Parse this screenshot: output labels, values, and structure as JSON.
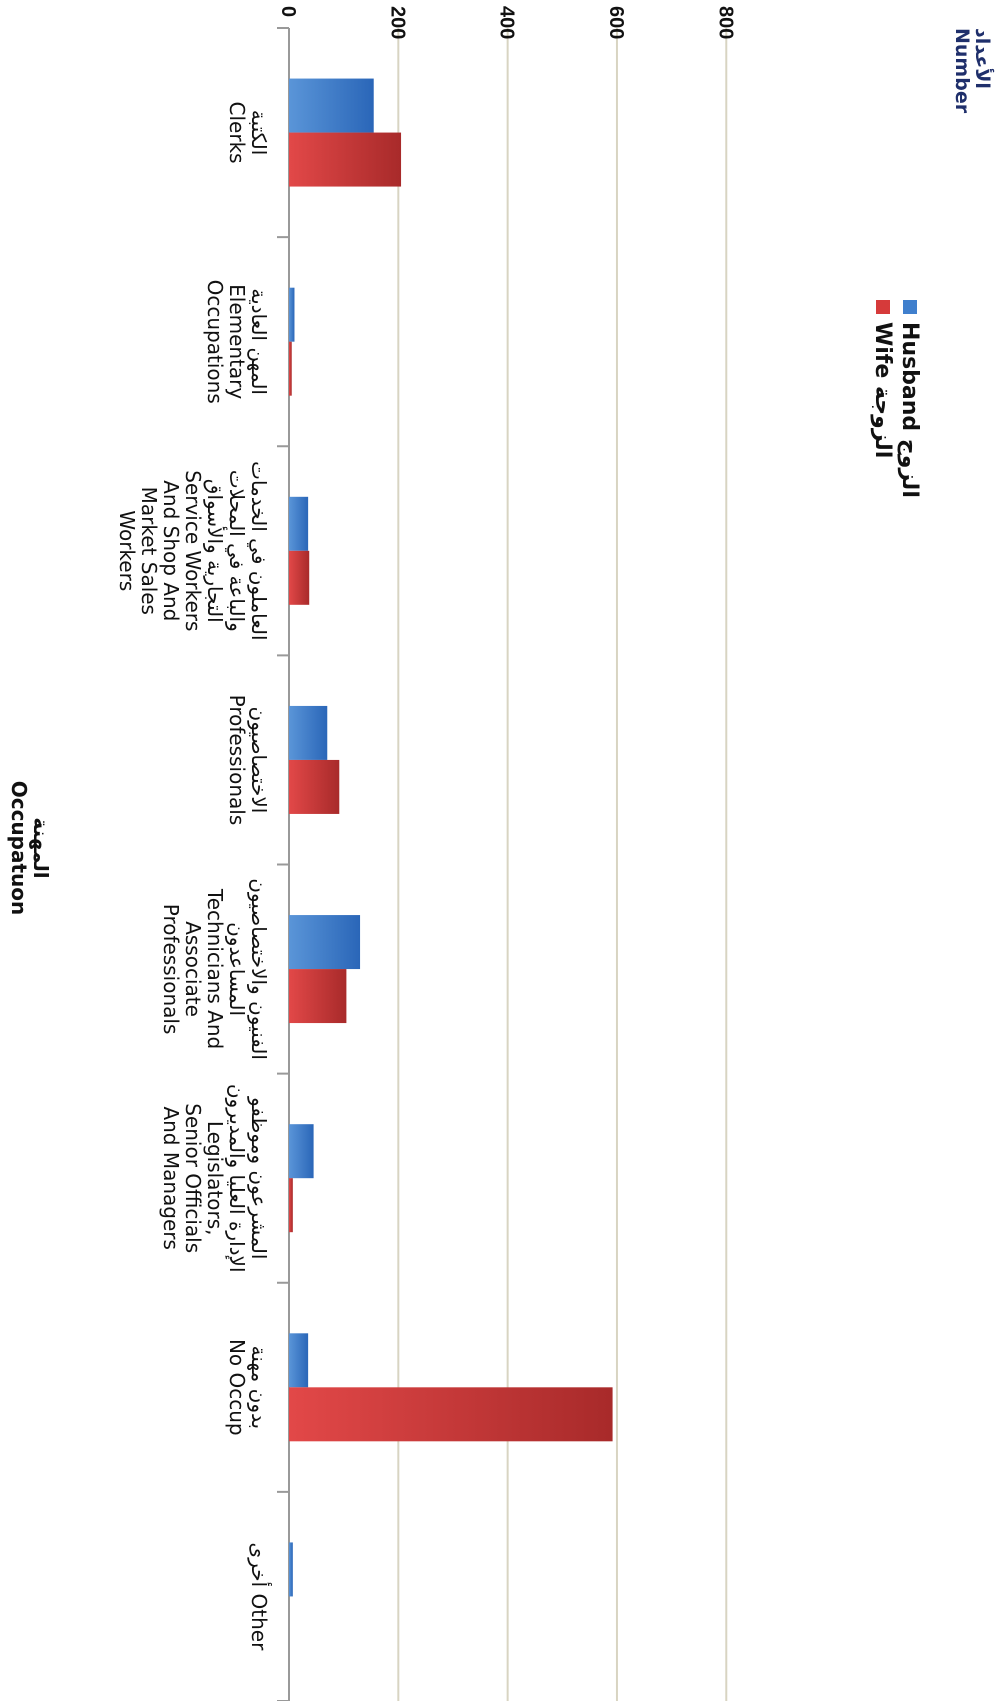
{
  "chart_data": {
    "type": "bar",
    "orientation": "horizontal",
    "categories": [
      "الكتبة\nClerks",
      "المهن العادية\nElementary\nOccupations",
      "العاملون في الخدمات\nوالباعة في المحلات\nالتجارية والأسواق\nService Workers\nAnd Shop And\nMarket Sales\nWorkers",
      "الاختصاصيون\nProfessionals",
      "الفنيون والاختصاصيون\nالمساعدون\nTechnicians And\nAssociate\nProfessionals",
      "المشرعون وموظفو\nالإدارة العليا والمديرون\nLegislators,\nSenior Officials\nAnd Managers",
      "بدون مهنة\nNo Occup",
      "أخرى Other"
    ],
    "series": [
      {
        "name": "Husband الزوج",
        "values": [
          155,
          10,
          35,
          70,
          130,
          45,
          35,
          7
        ]
      },
      {
        "name": "Wife الزوجة",
        "values": [
          205,
          5,
          37,
          92,
          105,
          7,
          592,
          0
        ]
      }
    ],
    "xlim": [
      0,
      800
    ],
    "ticks": [
      "0",
      "200",
      "400",
      "600",
      "800"
    ],
    "ylabel": "الأعداد\nNumber",
    "xlabel": "المهنة\nOccupatuon",
    "grid": true,
    "legend_position": "top-left",
    "colors": {
      "Husband": "#3f7fcd",
      "Wife": "#d63a3a",
      "grid": "#d8d4c2"
    }
  }
}
